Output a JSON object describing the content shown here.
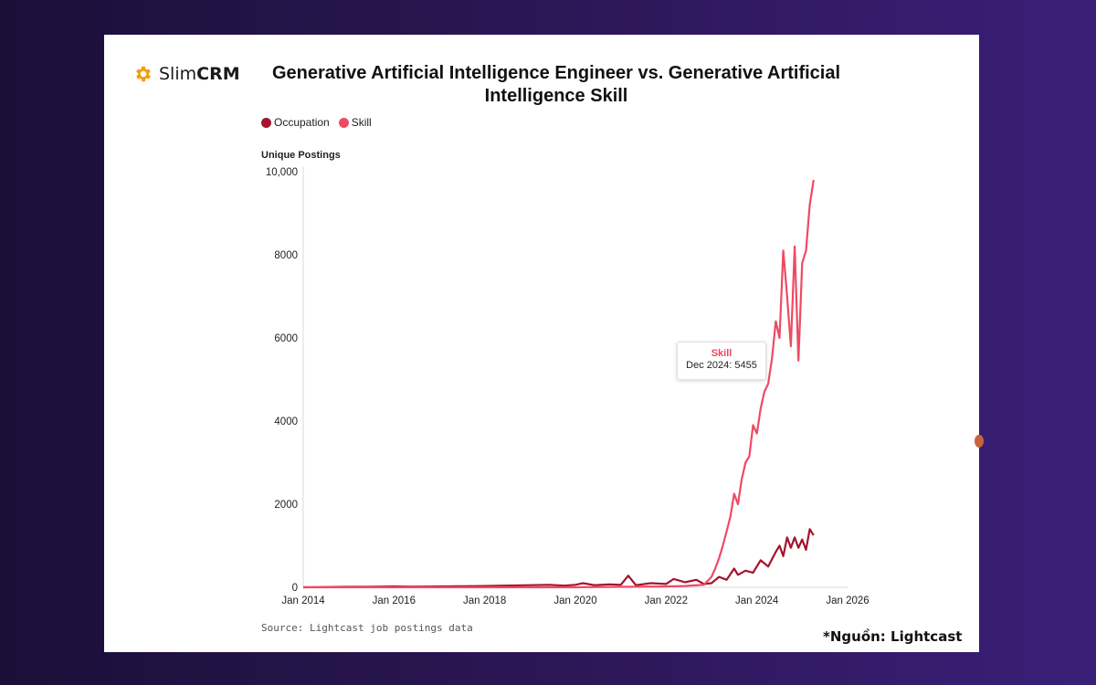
{
  "brand": {
    "light": "Slim",
    "bold": "CRM",
    "icon": "gear-icon",
    "color": "#f39c12"
  },
  "footnote": "*Nguồn: Lightcast",
  "colors": {
    "occupation": "#a3142d",
    "skill": "#ef4a63",
    "axis": "#d9d9d9"
  },
  "chart_data": {
    "type": "line",
    "title": "Generative Artificial Intelligence Engineer vs. Generative Artificial Intelligence Skill",
    "ylabel": "Unique Postings",
    "xlabel": "",
    "source": "Source: Lightcast job postings data",
    "xlim": [
      "2014-01",
      "2026-01"
    ],
    "ylim": [
      0,
      10000
    ],
    "x_ticks": [
      "Jan 2014",
      "Jan 2016",
      "Jan 2018",
      "Jan 2020",
      "Jan 2022",
      "Jan 2024",
      "Jan 2026"
    ],
    "y_ticks": [
      "0",
      "2000",
      "4000",
      "6000",
      "8000",
      "10,000"
    ],
    "grid": false,
    "legend_position": "top-left",
    "series": [
      {
        "name": "Occupation",
        "points": [
          [
            "2014-01",
            0
          ],
          [
            "2014-06",
            5
          ],
          [
            "2015-01",
            10
          ],
          [
            "2015-06",
            10
          ],
          [
            "2016-01",
            20
          ],
          [
            "2016-06",
            15
          ],
          [
            "2017-01",
            20
          ],
          [
            "2017-06",
            25
          ],
          [
            "2018-01",
            30
          ],
          [
            "2018-06",
            40
          ],
          [
            "2019-01",
            50
          ],
          [
            "2019-06",
            60
          ],
          [
            "2019-10",
            40
          ],
          [
            "2020-01",
            60
          ],
          [
            "2020-03",
            100
          ],
          [
            "2020-06",
            50
          ],
          [
            "2020-10",
            70
          ],
          [
            "2021-01",
            60
          ],
          [
            "2021-03",
            280
          ],
          [
            "2021-05",
            50
          ],
          [
            "2021-09",
            100
          ],
          [
            "2022-01",
            80
          ],
          [
            "2022-03",
            200
          ],
          [
            "2022-06",
            120
          ],
          [
            "2022-09",
            180
          ],
          [
            "2022-11",
            80
          ],
          [
            "2023-01",
            100
          ],
          [
            "2023-03",
            250
          ],
          [
            "2023-05",
            180
          ],
          [
            "2023-07",
            450
          ],
          [
            "2023-08",
            300
          ],
          [
            "2023-10",
            400
          ],
          [
            "2023-12",
            350
          ],
          [
            "2024-02",
            650
          ],
          [
            "2024-04",
            500
          ],
          [
            "2024-06",
            850
          ],
          [
            "2024-07",
            1000
          ],
          [
            "2024-08",
            750
          ],
          [
            "2024-09",
            1200
          ],
          [
            "2024-10",
            950
          ],
          [
            "2024-11",
            1200
          ],
          [
            "2024-12",
            950
          ],
          [
            "2025-01",
            1150
          ],
          [
            "2025-02",
            900
          ],
          [
            "2025-03",
            1400
          ],
          [
            "2025-04",
            1250
          ]
        ]
      },
      {
        "name": "Skill",
        "points": [
          [
            "2014-01",
            0
          ],
          [
            "2016-01",
            0
          ],
          [
            "2018-01",
            0
          ],
          [
            "2020-01",
            0
          ],
          [
            "2021-01",
            10
          ],
          [
            "2022-01",
            20
          ],
          [
            "2022-06",
            30
          ],
          [
            "2022-11",
            60
          ],
          [
            "2023-01",
            250
          ],
          [
            "2023-02",
            450
          ],
          [
            "2023-03",
            700
          ],
          [
            "2023-04",
            1000
          ],
          [
            "2023-05",
            1350
          ],
          [
            "2023-06",
            1700
          ],
          [
            "2023-07",
            2250
          ],
          [
            "2023-08",
            2000
          ],
          [
            "2023-09",
            2600
          ],
          [
            "2023-10",
            3000
          ],
          [
            "2023-11",
            3150
          ],
          [
            "2023-12",
            3900
          ],
          [
            "2024-01",
            3700
          ],
          [
            "2024-02",
            4300
          ],
          [
            "2024-03",
            4700
          ],
          [
            "2024-04",
            4900
          ],
          [
            "2024-05",
            5500
          ],
          [
            "2024-06",
            6400
          ],
          [
            "2024-07",
            6000
          ],
          [
            "2024-08",
            8100
          ],
          [
            "2024-09",
            7000
          ],
          [
            "2024-10",
            5800
          ],
          [
            "2024-11",
            8200
          ],
          [
            "2024-12",
            5455
          ],
          [
            "2025-01",
            7800
          ],
          [
            "2025-02",
            8100
          ],
          [
            "2025-03",
            9200
          ],
          [
            "2025-04",
            9800
          ]
        ]
      }
    ],
    "tooltip": {
      "series": "Skill",
      "label": "Dec 2024: 5455"
    }
  }
}
